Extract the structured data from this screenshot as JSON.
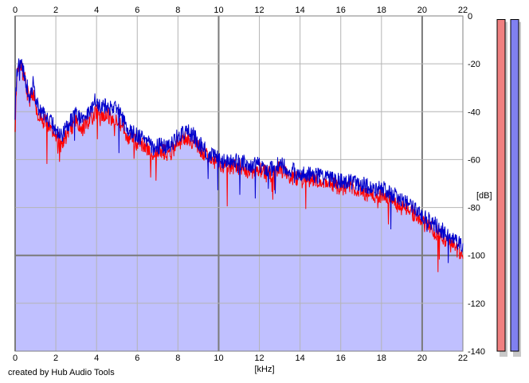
{
  "credit": "created by Hub Audio Tools",
  "chart_data": {
    "type": "area",
    "xlabel": "[kHz]",
    "ylabel": "[dB]",
    "xlim": [
      0,
      22
    ],
    "ylim": [
      -140,
      0
    ],
    "x_ticks": [
      "0",
      "2",
      "4",
      "6",
      "8",
      "10",
      "12",
      "14",
      "16",
      "18",
      "20",
      "22"
    ],
    "y_ticks": [
      "0",
      "-20",
      "-40",
      "-60",
      "-80",
      "-100",
      "-120",
      "-140"
    ],
    "grid": true,
    "fill_color": "#c0c0ff",
    "series": [
      {
        "color": "#ff0000",
        "x": [
          0,
          0.1,
          0.25,
          0.5,
          0.7,
          0.9,
          1.0,
          1.2,
          1.5,
          1.8,
          2.0,
          2.3,
          2.5,
          2.8,
          3.0,
          3.3,
          3.6,
          3.8,
          4.0,
          4.2,
          4.5,
          4.8,
          5.0,
          5.3,
          5.6,
          6.0,
          6.4,
          6.8,
          7.2,
          7.6,
          8.0,
          8.4,
          8.8,
          9.2,
          9.6,
          10.0,
          10.5,
          11.0,
          11.5,
          12.0,
          12.5,
          13.0,
          13.5,
          14.0,
          14.5,
          15.0,
          15.5,
          16.0,
          16.5,
          17.0,
          17.5,
          18.0,
          18.5,
          19.0,
          19.5,
          20.0,
          20.3,
          20.6,
          20.9,
          21.2,
          21.5,
          21.8,
          22.0
        ],
        "values": [
          -45,
          -25,
          -20,
          -27,
          -35,
          -32,
          -38,
          -43,
          -44,
          -47,
          -49,
          -55,
          -50,
          -46,
          -44,
          -47,
          -44,
          -42,
          -40,
          -43,
          -41,
          -44,
          -42,
          -47,
          -51,
          -53,
          -54,
          -58,
          -56,
          -58,
          -53,
          -51,
          -53,
          -57,
          -60,
          -62,
          -63,
          -63,
          -65,
          -64,
          -66,
          -64,
          -67,
          -69,
          -68,
          -70,
          -70,
          -72,
          -71,
          -73,
          -75,
          -75,
          -77,
          -80,
          -82,
          -86,
          -88,
          -90,
          -91,
          -94,
          -96,
          -98,
          -99
        ]
      },
      {
        "color": "#0000cc",
        "x": [
          0,
          0.1,
          0.25,
          0.5,
          0.7,
          0.9,
          1.0,
          1.2,
          1.5,
          1.8,
          2.0,
          2.3,
          2.5,
          2.8,
          3.0,
          3.3,
          3.6,
          3.8,
          4.0,
          4.2,
          4.5,
          4.8,
          5.0,
          5.3,
          5.6,
          6.0,
          6.4,
          6.8,
          7.2,
          7.6,
          8.0,
          8.4,
          8.8,
          9.2,
          9.6,
          10.0,
          10.5,
          11.0,
          11.5,
          12.0,
          12.5,
          13.0,
          13.5,
          14.0,
          14.5,
          15.0,
          15.5,
          16.0,
          16.5,
          17.0,
          17.5,
          18.0,
          18.5,
          19.0,
          19.5,
          20.0,
          20.3,
          20.6,
          20.9,
          21.2,
          21.5,
          21.8,
          22.0
        ],
        "values": [
          -40,
          -22,
          -19,
          -26,
          -34,
          -28,
          -35,
          -40,
          -42,
          -45,
          -47,
          -50,
          -47,
          -43,
          -41,
          -44,
          -40,
          -37,
          -34,
          -39,
          -37,
          -40,
          -38,
          -44,
          -48,
          -50,
          -52,
          -55,
          -54,
          -55,
          -50,
          -48,
          -50,
          -55,
          -58,
          -60,
          -61,
          -61,
          -62,
          -62,
          -64,
          -62,
          -64,
          -66,
          -66,
          -67,
          -68,
          -69,
          -69,
          -70,
          -72,
          -72,
          -74,
          -77,
          -79,
          -83,
          -85,
          -87,
          -89,
          -91,
          -93,
          -95,
          -96
        ]
      }
    ],
    "fill_values": [
      -30,
      -25,
      -22,
      -27,
      -33,
      -30,
      -35,
      -40,
      -42,
      -45,
      -47,
      -50,
      -47,
      -44,
      -42,
      -44,
      -41,
      -39,
      -37,
      -40,
      -38,
      -41,
      -40,
      -45,
      -49,
      -51,
      -53,
      -56,
      -55,
      -56,
      -52,
      -50,
      -52,
      -56,
      -59,
      -61,
      -62,
      -62,
      -64,
      -63,
      -65,
      -64,
      -66,
      -68,
      -68,
      -69,
      -70,
      -71,
      -71,
      -72,
      -74,
      -74,
      -76,
      -79,
      -81,
      -85,
      -87,
      -89,
      -91,
      -93,
      -95,
      -97,
      -98
    ]
  },
  "level_meters": [
    {
      "color": "#f08080",
      "level": -1.5
    },
    {
      "color": "#8080f0",
      "level": -1.5
    }
  ]
}
